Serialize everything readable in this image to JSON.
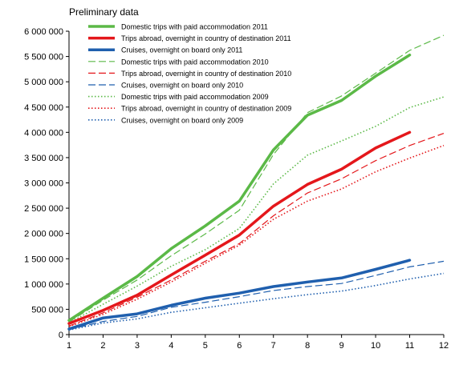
{
  "note": "Preliminary data",
  "chart_data": {
    "type": "line",
    "title": "",
    "xlabel": "",
    "ylabel": "",
    "x": [
      1,
      2,
      3,
      4,
      5,
      6,
      7,
      8,
      9,
      10,
      11,
      12
    ],
    "xlim": [
      1,
      12
    ],
    "ylim": [
      0,
      6000000
    ],
    "y_ticks": [
      0,
      500000,
      1000000,
      1500000,
      2000000,
      2500000,
      3000000,
      3500000,
      4000000,
      4500000,
      5000000,
      5500000,
      6000000
    ],
    "y_tick_labels": [
      "0",
      "500 000",
      "1 000 000",
      "1 500 000",
      "2 000 000",
      "2 500 000",
      "3 000 000",
      "3 500 000",
      "4 000 000",
      "4 500 000",
      "5 000 000",
      "5 500 000",
      "6 000 000"
    ],
    "x_tick_labels": [
      "1",
      "2",
      "3",
      "4",
      "5",
      "6",
      "7",
      "8",
      "9",
      "10",
      "11",
      "12"
    ],
    "grid": false,
    "legend_position": "top-left inside",
    "series": [
      {
        "name": "Domestic trips with paid accommodation 2011",
        "color": "#5bb947",
        "style": "solid-thick",
        "values": [
          280000,
          720000,
          1150000,
          1700000,
          2150000,
          2640000,
          3650000,
          4340000,
          4630000,
          5110000,
          5530000,
          null
        ]
      },
      {
        "name": "Trips abroad, overnight in country of destination 2011",
        "color": "#e4171b",
        "style": "solid-thick",
        "values": [
          220000,
          480000,
          780000,
          1180000,
          1570000,
          1970000,
          2540000,
          2970000,
          3270000,
          3690000,
          4000000,
          null
        ]
      },
      {
        "name": "Cruises, overnight on board only 2011",
        "color": "#1f5fae",
        "style": "solid-thick",
        "values": [
          110000,
          330000,
          410000,
          580000,
          720000,
          820000,
          950000,
          1040000,
          1120000,
          1290000,
          1470000,
          null
        ]
      },
      {
        "name": "Domestic trips with paid accommodation 2010",
        "color": "#5bb947",
        "style": "dashed",
        "values": [
          250000,
          680000,
          1080000,
          1560000,
          1990000,
          2460000,
          3560000,
          4390000,
          4720000,
          5170000,
          5620000,
          5920000
        ]
      },
      {
        "name": "Trips abroad, overnight in country of destination 2010",
        "color": "#e4171b",
        "style": "dashed",
        "values": [
          170000,
          430000,
          740000,
          1080000,
          1450000,
          1800000,
          2350000,
          2800000,
          3080000,
          3440000,
          3740000,
          3980000
        ]
      },
      {
        "name": "Cruises, overnight on board only 2010",
        "color": "#1f5fae",
        "style": "dashed",
        "values": [
          100000,
          260000,
          360000,
          540000,
          640000,
          750000,
          870000,
          950000,
          1010000,
          1170000,
          1340000,
          1450000
        ]
      },
      {
        "name": "Domestic trips with paid accommodation 2009",
        "color": "#5bb947",
        "style": "dotted",
        "values": [
          230000,
          600000,
          960000,
          1350000,
          1680000,
          2100000,
          2980000,
          3550000,
          3830000,
          4120000,
          4490000,
          4700000
        ]
      },
      {
        "name": "Trips abroad, overnight in country of destination 2009",
        "color": "#e4171b",
        "style": "dotted",
        "values": [
          160000,
          400000,
          700000,
          1040000,
          1410000,
          1770000,
          2280000,
          2640000,
          2880000,
          3220000,
          3490000,
          3740000
        ]
      },
      {
        "name": "Cruises, overnight on board only 2009",
        "color": "#1f5fae",
        "style": "dotted",
        "values": [
          90000,
          230000,
          310000,
          440000,
          530000,
          620000,
          710000,
          790000,
          860000,
          970000,
          1100000,
          1210000
        ]
      }
    ]
  }
}
